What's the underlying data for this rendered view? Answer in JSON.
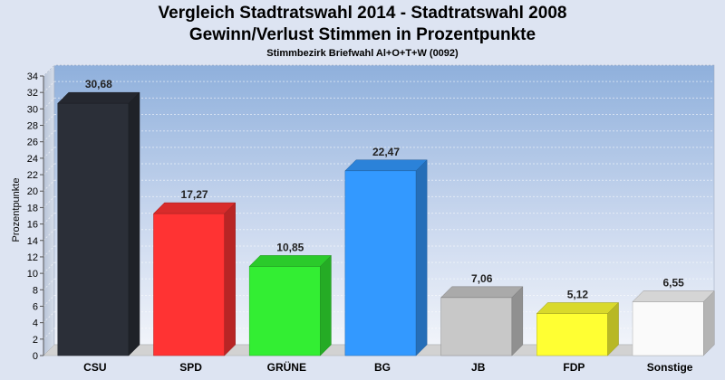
{
  "chart_data": {
    "type": "bar",
    "title": "Vergleich Stadtratswahl 2014 - Stadtratswahl 2008",
    "subtitle_line2": "Gewinn/Verlust Stimmen in Prozentpunkte",
    "caption": "Stimmbezirk Briefwahl Al+O+T+W (0092)",
    "ylabel": "Prozentpunkte",
    "categories": [
      "CSU",
      "SPD",
      "GRÜNE",
      "BG",
      "JB",
      "FDP",
      "Sonstige"
    ],
    "values": [
      30.68,
      17.27,
      10.85,
      22.47,
      7.06,
      5.12,
      6.55
    ],
    "value_labels": [
      "30,68",
      "17,27",
      "10,85",
      "22,47",
      "7,06",
      "5,12",
      "6,55"
    ],
    "colors": [
      "#2b2f38",
      "#ff3333",
      "#33ee33",
      "#3399ff",
      "#c8c8c8",
      "#ffff33",
      "#fafafa"
    ],
    "ylim": [
      0,
      34
    ],
    "yticks": [
      0,
      2,
      4,
      6,
      8,
      10,
      12,
      14,
      16,
      18,
      20,
      22,
      24,
      26,
      28,
      30,
      32,
      34
    ],
    "grid": true
  }
}
